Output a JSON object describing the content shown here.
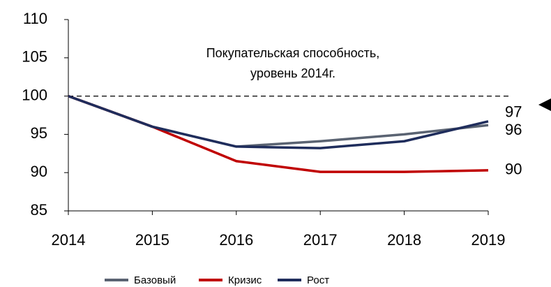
{
  "chart_data": {
    "type": "line",
    "annotation": [
      "Покупательская способность,",
      "уровень 2014г."
    ],
    "x": [
      2014,
      2015,
      2016,
      2017,
      2018,
      2019
    ],
    "xlim": [
      2014,
      2019
    ],
    "xticks": [
      2014,
      2015,
      2016,
      2017,
      2018,
      2019
    ],
    "ylim": [
      85,
      110
    ],
    "yticks": [
      85,
      90,
      95,
      100,
      105,
      110
    ],
    "reference_line": 100,
    "series": [
      {
        "name": "Базовый",
        "color": "#5a6372",
        "values": [
          100,
          96,
          93.4,
          94.1,
          95,
          96.2
        ],
        "value_labels": [
          null,
          null,
          null,
          null,
          null,
          "96"
        ]
      },
      {
        "name": "Кризис",
        "color": "#c00000",
        "values": [
          100,
          96,
          91.5,
          90.1,
          90.1,
          90.3
        ],
        "value_labels": [
          null,
          null,
          null,
          null,
          null,
          "90"
        ]
      },
      {
        "name": "Рост",
        "color": "#1f2d5c",
        "values": [
          100,
          96,
          93.4,
          93.2,
          94.1,
          96.7
        ],
        "value_labels": [
          null,
          null,
          null,
          null,
          null,
          "97"
        ]
      }
    ]
  }
}
